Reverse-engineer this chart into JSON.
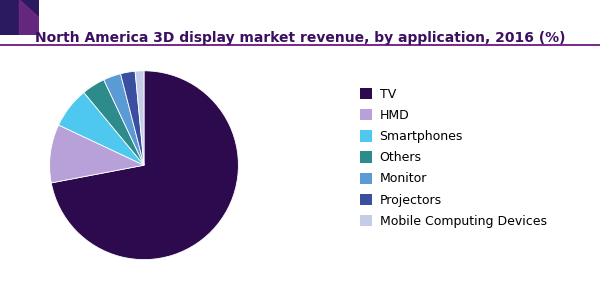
{
  "title": "North America 3D display market revenue, by application, 2016 (%)",
  "labels": [
    "TV",
    "HMD",
    "Smartphones",
    "Others",
    "Monitor",
    "Projectors",
    "Mobile Computing Devices"
  ],
  "values": [
    72,
    10,
    7,
    4,
    3,
    2.5,
    1.5
  ],
  "colors": [
    "#2d0a4e",
    "#b8a0d8",
    "#4ec8ee",
    "#2e8b8b",
    "#5b9bd5",
    "#3a4fa0",
    "#c5cce8"
  ],
  "title_fontsize": 10,
  "legend_fontsize": 9,
  "background_color": "#ffffff",
  "title_color": "#3b1060",
  "accent_dark_color": "#2c1a5e",
  "accent_purple_color": "#7b2d8b",
  "accent_line_color": "#7b2d8b"
}
